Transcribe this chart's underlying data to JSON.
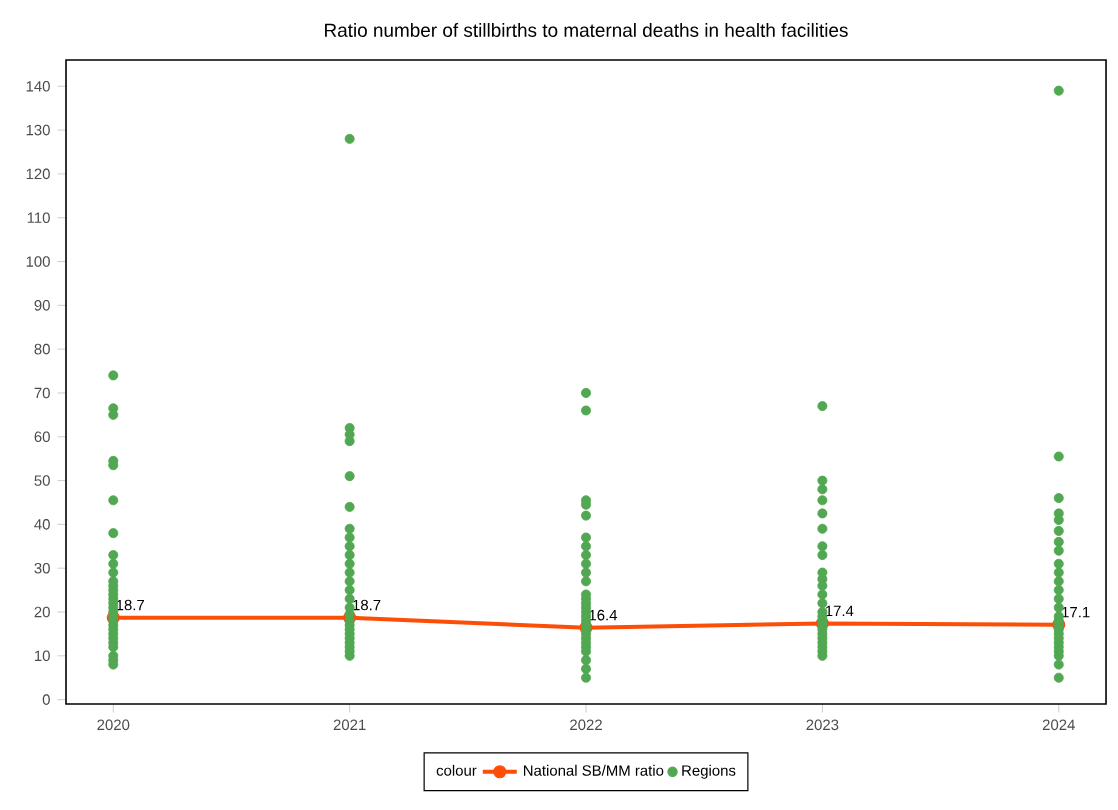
{
  "chart_data": {
    "type": "scatter",
    "title": "Ratio number of stillbirths to maternal deaths in health facilities",
    "legend_title": "colour",
    "legend": "bottom",
    "marker": "circle",
    "grid": false,
    "xlim": [
      2019.8,
      2024.2
    ],
    "xticks": [
      2020,
      2021,
      2022,
      2023,
      2024
    ],
    "ylim": [
      -1,
      146
    ],
    "yticks": [
      0,
      10,
      20,
      30,
      40,
      50,
      60,
      70,
      80,
      90,
      100,
      110,
      120,
      130,
      140
    ],
    "series": [
      {
        "name": "National SB/MM ratio",
        "type": "line",
        "color": "#fc4e07",
        "x": [
          2020,
          2021,
          2022,
          2023,
          2024
        ],
        "values": [
          18.7,
          18.7,
          16.4,
          17.4,
          17.1
        ],
        "value_labels": [
          "18.7",
          "18.7",
          "16.4",
          "17.4",
          "17.1"
        ]
      },
      {
        "name": "Regions",
        "color": "#52a852",
        "x": [
          2020,
          2020,
          2020,
          2020,
          2020,
          2020,
          2020,
          2020,
          2020,
          2020,
          2020,
          2020,
          2020,
          2020,
          2020,
          2020,
          2020,
          2020,
          2020,
          2020,
          2020,
          2020,
          2020,
          2020,
          2020,
          2020,
          2020,
          2020,
          2020,
          2021,
          2021,
          2021,
          2021,
          2021,
          2021,
          2021,
          2021,
          2021,
          2021,
          2021,
          2021,
          2021,
          2021,
          2021,
          2021,
          2021,
          2021,
          2021,
          2021,
          2021,
          2021,
          2021,
          2021,
          2021,
          2021,
          2022,
          2022,
          2022,
          2022,
          2022,
          2022,
          2022,
          2022,
          2022,
          2022,
          2022,
          2022,
          2022,
          2022,
          2022,
          2022,
          2022,
          2022,
          2022,
          2022,
          2022,
          2022,
          2022,
          2022,
          2022,
          2022,
          2022,
          2022,
          2023,
          2023,
          2023,
          2023,
          2023,
          2023,
          2023,
          2023,
          2023,
          2023,
          2023,
          2023,
          2023,
          2023,
          2023,
          2023,
          2023,
          2023,
          2023,
          2023,
          2023,
          2023,
          2023,
          2023,
          2024,
          2024,
          2024,
          2024,
          2024,
          2024,
          2024,
          2024,
          2024,
          2024,
          2024,
          2024,
          2024,
          2024,
          2024,
          2024,
          2024,
          2024,
          2024,
          2024,
          2024,
          2024,
          2024,
          2024,
          2024,
          2024
        ],
        "values": [
          74,
          66.5,
          65,
          54.5,
          53.5,
          45.5,
          38,
          33,
          31,
          29,
          27,
          26,
          25,
          24,
          23,
          22,
          21,
          20,
          19,
          18,
          17,
          16,
          15,
          14,
          13,
          12,
          10,
          9,
          8,
          128,
          62,
          60.5,
          59,
          51,
          44,
          39,
          37,
          35,
          33,
          31,
          29,
          27,
          25,
          23,
          21,
          19.5,
          18,
          17,
          16,
          15,
          14,
          13,
          12,
          11,
          10,
          70,
          66,
          45.5,
          44.5,
          42,
          37,
          35,
          33,
          31,
          29,
          27,
          24,
          23,
          22,
          21,
          20,
          19,
          18,
          17,
          16,
          15,
          14,
          13,
          12,
          11,
          9,
          7,
          5,
          67,
          50,
          48,
          45.5,
          42.5,
          39,
          35,
          33,
          29,
          27.5,
          26,
          24,
          22,
          20,
          19,
          18,
          17,
          16,
          15,
          14,
          13,
          12,
          11,
          10,
          139,
          55.5,
          46,
          42.5,
          41,
          38.5,
          36,
          34,
          31,
          29,
          27,
          25,
          23,
          21,
          19,
          18,
          17,
          16,
          15,
          14,
          13,
          12,
          11,
          10,
          8,
          5
        ]
      }
    ]
  }
}
